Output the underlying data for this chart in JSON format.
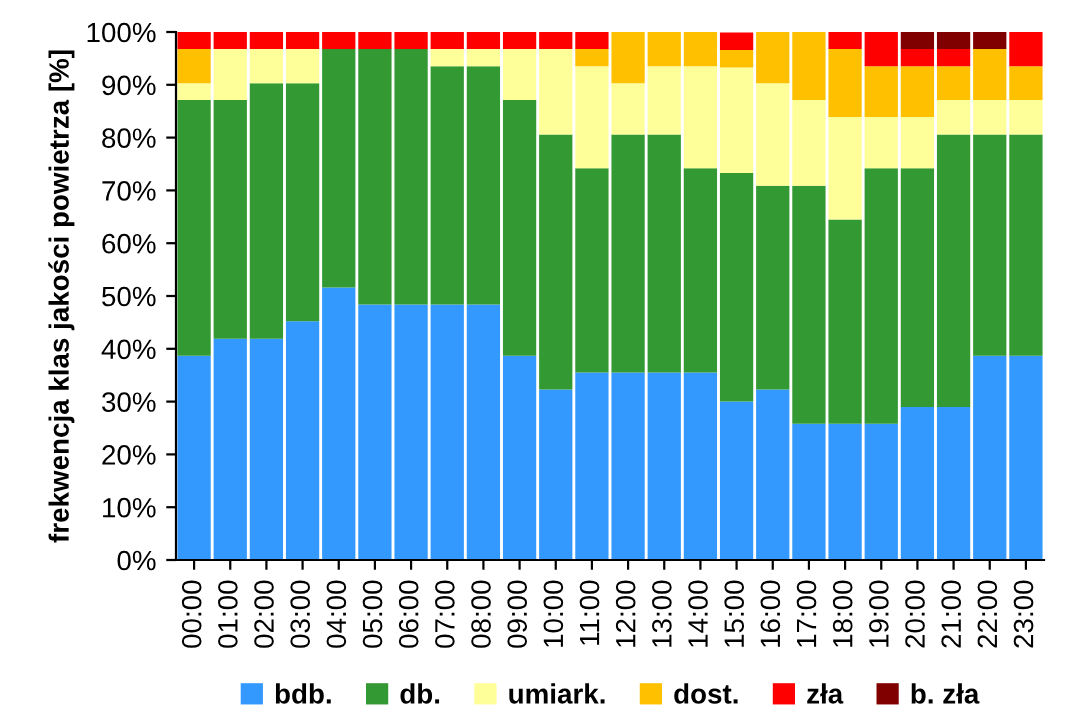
{
  "chart_data": {
    "type": "bar",
    "stacked": true,
    "ylabel": "frekwencja klas jakości powietrza [%]",
    "categories": [
      "00:00",
      "01:00",
      "02:00",
      "03:00",
      "04:00",
      "05:00",
      "06:00",
      "07:00",
      "08:00",
      "09:00",
      "10:00",
      "11:00",
      "12:00",
      "13:00",
      "14:00",
      "15:00",
      "16:00",
      "17:00",
      "18:00",
      "19:00",
      "20:00",
      "21:00",
      "22:00",
      "23:00"
    ],
    "series": [
      {
        "name": "bdb.",
        "color": "#3399ff",
        "values": [
          38.7,
          41.9,
          41.9,
          45.2,
          51.6,
          48.4,
          48.4,
          48.4,
          48.4,
          38.7,
          32.3,
          35.5,
          35.5,
          35.5,
          35.5,
          30.0,
          32.3,
          25.8,
          25.8,
          25.8,
          29.0,
          29.0,
          38.7,
          38.7
        ]
      },
      {
        "name": "db.",
        "color": "#339933",
        "values": [
          48.4,
          45.2,
          48.4,
          45.1,
          45.2,
          48.4,
          48.4,
          45.1,
          45.1,
          48.4,
          48.3,
          38.7,
          45.1,
          45.1,
          38.7,
          43.3,
          38.6,
          45.1,
          38.7,
          48.4,
          45.2,
          51.6,
          41.9,
          41.9
        ]
      },
      {
        "name": "umiark.",
        "color": "#ffff99",
        "values": [
          3.2,
          9.7,
          6.5,
          6.5,
          0,
          0,
          0,
          3.3,
          3.3,
          9.7,
          16.2,
          19.3,
          9.7,
          12.9,
          19.3,
          20.0,
          19.4,
          16.2,
          19.4,
          9.7,
          9.7,
          6.5,
          6.5,
          6.5
        ]
      },
      {
        "name": "dost.",
        "color": "#ffc000",
        "values": [
          6.5,
          0,
          0,
          0,
          0,
          0,
          0,
          0,
          0,
          0,
          0,
          3.3,
          9.7,
          6.5,
          6.5,
          3.3,
          9.7,
          12.9,
          12.9,
          9.6,
          9.6,
          6.4,
          9.7,
          6.4
        ]
      },
      {
        "name": "zła",
        "color": "#ff0000",
        "values": [
          3.2,
          3.2,
          3.2,
          3.2,
          3.2,
          3.2,
          3.2,
          3.2,
          3.2,
          3.2,
          3.2,
          3.2,
          0,
          0,
          0,
          3.3,
          0,
          0,
          3.2,
          6.5,
          3.3,
          3.3,
          0,
          6.5
        ]
      },
      {
        "name": "b. zła",
        "color": "#800000",
        "values": [
          0,
          0,
          0,
          0,
          0,
          0,
          0,
          0,
          0,
          0,
          0,
          0,
          0,
          0,
          0,
          0,
          0,
          0,
          0,
          0,
          3.2,
          3.2,
          3.2,
          0
        ]
      }
    ],
    "ylim": [
      0,
      100
    ],
    "yticks": [
      {
        "value": 0,
        "label": "0%"
      },
      {
        "value": 10,
        "label": "10%"
      },
      {
        "value": 20,
        "label": "20%"
      },
      {
        "value": 30,
        "label": "30%"
      },
      {
        "value": 40,
        "label": "40%"
      },
      {
        "value": 50,
        "label": "50%"
      },
      {
        "value": 60,
        "label": "60%"
      },
      {
        "value": 70,
        "label": "70%"
      },
      {
        "value": 80,
        "label": "80%"
      },
      {
        "value": 90,
        "label": "90%"
      },
      {
        "value": 100,
        "label": "100%"
      }
    ],
    "grid": false,
    "legend": "bottom"
  }
}
